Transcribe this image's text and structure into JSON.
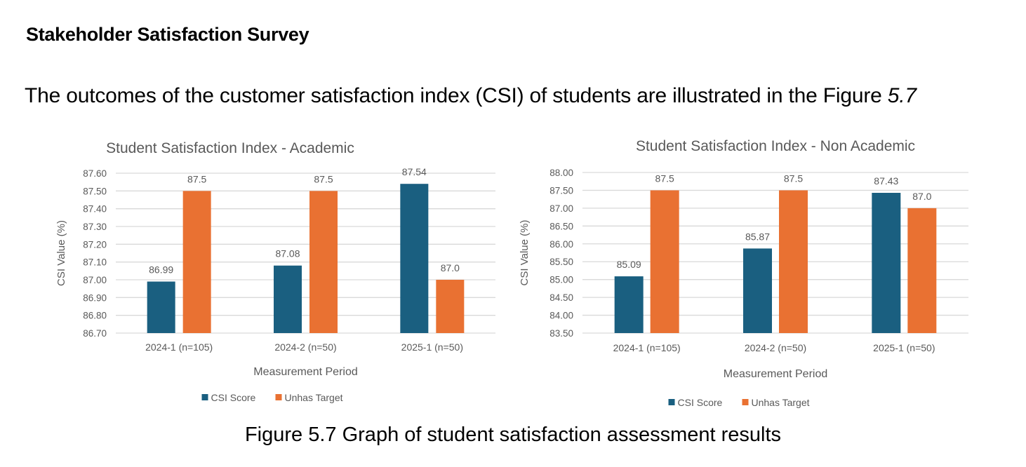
{
  "document": {
    "heading": "Stakeholder Satisfaction Survey",
    "intro_text": "The outcomes of the customer satisfaction index (CSI) of students are illustrated in the Figure ",
    "intro_figure_ref": "5.7",
    "caption": "Figure 5.7 Graph of student satisfaction assessment results"
  },
  "colors": {
    "csi_score": "#1a5f80",
    "unhas_target": "#e97132",
    "grid": "#d9d9d9",
    "axis_text": "#595959",
    "title_text": "#595959"
  },
  "chart_data": [
    {
      "type": "bar",
      "title": "Student Satisfaction Index - Academic",
      "xlabel": "Measurement Period",
      "ylabel": "CSI Value (%)",
      "categories": [
        "2024-1 (n=105)",
        "2024-2 (n=50)",
        "2025-1 (n=50)"
      ],
      "ylim": [
        86.7,
        87.6
      ],
      "yticks": [
        "86.70",
        "86.80",
        "86.90",
        "87.00",
        "87.10",
        "87.20",
        "87.30",
        "87.40",
        "87.50",
        "87.60"
      ],
      "grid": true,
      "legend_position": "bottom",
      "series": [
        {
          "name": "CSI Score",
          "values": [
            86.99,
            87.08,
            87.54
          ],
          "labels": [
            "86.99",
            "87.08",
            "87.54"
          ]
        },
        {
          "name": "Unhas Target",
          "values": [
            87.5,
            87.5,
            87.0
          ],
          "labels": [
            "87.5",
            "87.5",
            "87.0"
          ]
        }
      ]
    },
    {
      "type": "bar",
      "title": "Student Satisfaction Index - Non Academic",
      "xlabel": "Measurement Period",
      "ylabel": "CSI Value (%)",
      "categories": [
        "2024-1 (n=105)",
        "2024-2 (n=50)",
        "2025-1 (n=50)"
      ],
      "ylim": [
        83.5,
        88.0
      ],
      "yticks": [
        "83.50",
        "84.00",
        "84.50",
        "85.00",
        "85.50",
        "86.00",
        "86.50",
        "87.00",
        "87.50",
        "88.00"
      ],
      "grid": true,
      "legend_position": "bottom",
      "series": [
        {
          "name": "CSI Score",
          "values": [
            85.09,
            85.87,
            87.43
          ],
          "labels": [
            "85.09",
            "85.87",
            "87.43"
          ]
        },
        {
          "name": "Unhas Target",
          "values": [
            87.5,
            87.5,
            87.0
          ],
          "labels": [
            "87.5",
            "87.5",
            "87.0"
          ]
        }
      ]
    }
  ]
}
